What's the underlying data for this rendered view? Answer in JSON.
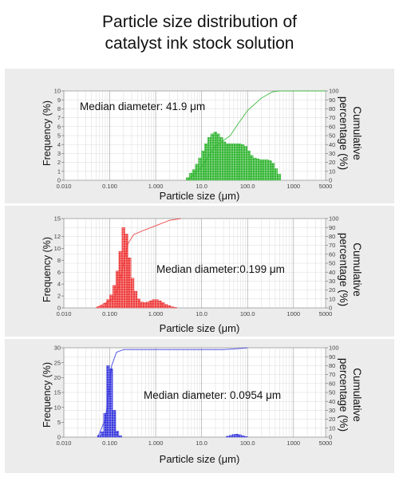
{
  "title_line1": "Particle size distribution of",
  "title_line2": "catalyst ink stock solution",
  "chart_data": [
    {
      "type": "bar",
      "color": "#33b533",
      "xscale": "log",
      "xlim": [
        0.01,
        5000
      ],
      "ylim": [
        0,
        10
      ],
      "xlabel": "Particle size (μm)",
      "ylabel": "Frequency (%)",
      "ylabel2": [
        "Cumulative",
        "percentage (%)"
      ],
      "annotation": "Median diameter: 41.9 μm",
      "xticks": [
        "0.010",
        "0.100",
        "1.000",
        "10.0",
        "100.0",
        "1000",
        "5000"
      ],
      "yticks": [
        "0",
        "1",
        "2",
        "3",
        "4",
        "5",
        "6",
        "7",
        "8",
        "9",
        "10"
      ],
      "y2ticks": [
        "0",
        "10",
        "20",
        "30",
        "40",
        "50",
        "60",
        "70",
        "80",
        "90",
        "100"
      ],
      "bins": [
        [
          5,
          0.3
        ],
        [
          5.8,
          0.8
        ],
        [
          6.8,
          1.2
        ],
        [
          7.9,
          1.8
        ],
        [
          9.2,
          2.5
        ],
        [
          10.7,
          3.3
        ],
        [
          12.5,
          4.1
        ],
        [
          14.6,
          4.8
        ],
        [
          17,
          5.2
        ],
        [
          19.8,
          5.4
        ],
        [
          23,
          5.2
        ],
        [
          26.8,
          4.8
        ],
        [
          31.2,
          4.3
        ],
        [
          36.4,
          4.1
        ],
        [
          42.4,
          4.1
        ],
        [
          49.4,
          4.1
        ],
        [
          57.5,
          4.1
        ],
        [
          67,
          4.1
        ],
        [
          78,
          4.0
        ],
        [
          90.9,
          3.8
        ],
        [
          106,
          3.3
        ],
        [
          123,
          2.8
        ],
        [
          144,
          2.5
        ],
        [
          167,
          2.4
        ],
        [
          195,
          2.3
        ],
        [
          227,
          2.3
        ],
        [
          265,
          2.3
        ],
        [
          308,
          2.2
        ],
        [
          359,
          1.9
        ],
        [
          418,
          1.3
        ],
        [
          487,
          0.7
        ]
      ],
      "cumulative": [
        [
          5,
          0
        ],
        [
          10,
          15
        ],
        [
          20,
          38
        ],
        [
          41.9,
          50
        ],
        [
          60,
          62
        ],
        [
          100,
          78
        ],
        [
          200,
          92
        ],
        [
          350,
          99
        ],
        [
          500,
          100
        ],
        [
          5000,
          100
        ]
      ]
    },
    {
      "type": "bar",
      "color": "#ee3b3b",
      "xscale": "log",
      "xlim": [
        0.01,
        5000
      ],
      "ylim": [
        0,
        15
      ],
      "xlabel": "Particle size (μm)",
      "ylabel": "Frequency (%)",
      "ylabel2": [
        "Cumulative",
        "percentage (%)"
      ],
      "annotation": "Median diameter:0.199 μm",
      "xticks": [
        "0.010",
        "0.100",
        "1.000",
        "10.0",
        "100.0",
        "1000",
        "5000"
      ],
      "yticks": [
        "0",
        "2",
        "4",
        "6",
        "8",
        "10",
        "12",
        "15"
      ],
      "yticks_at": [
        0,
        2,
        4,
        6,
        8,
        10,
        12,
        15
      ],
      "y2ticks": [
        "0",
        "10",
        "20",
        "30",
        "40",
        "50",
        "60",
        "70",
        "80",
        "90",
        "100"
      ],
      "bins": [
        [
          0.058,
          0.2
        ],
        [
          0.068,
          0.4
        ],
        [
          0.079,
          0.8
        ],
        [
          0.092,
          1.4
        ],
        [
          0.107,
          2.2
        ],
        [
          0.125,
          3.8
        ],
        [
          0.146,
          6.2
        ],
        [
          0.17,
          9.5
        ],
        [
          0.198,
          13.5
        ],
        [
          0.231,
          12.4
        ],
        [
          0.269,
          8.4
        ],
        [
          0.313,
          5.0
        ],
        [
          0.365,
          2.8
        ],
        [
          0.425,
          1.5
        ],
        [
          0.495,
          1.0
        ],
        [
          0.577,
          0.9
        ],
        [
          0.672,
          1.0
        ],
        [
          0.783,
          1.2
        ],
        [
          0.912,
          1.4
        ],
        [
          1.06,
          1.4
        ],
        [
          1.24,
          1.2
        ],
        [
          1.44,
          0.9
        ],
        [
          1.68,
          0.6
        ],
        [
          1.96,
          0.4
        ],
        [
          2.28,
          0.2
        ],
        [
          2.66,
          0.1
        ]
      ],
      "cumulative": [
        [
          0.05,
          0
        ],
        [
          0.12,
          10
        ],
        [
          0.16,
          25
        ],
        [
          0.199,
          50
        ],
        [
          0.25,
          72
        ],
        [
          0.33,
          82
        ],
        [
          0.5,
          86
        ],
        [
          1,
          92
        ],
        [
          2,
          98
        ],
        [
          3.5,
          100
        ]
      ]
    },
    {
      "type": "bar",
      "color": "#3838dd",
      "xscale": "log",
      "xlim": [
        0.01,
        5000
      ],
      "ylim": [
        0,
        30
      ],
      "xlabel": "Particle size (μm)",
      "ylabel": "Frequency (%)",
      "ylabel2": [
        "Cumulative",
        "percentage (%)"
      ],
      "annotation": "Median diameter: 0.0954 μm",
      "xticks": [
        "0.010",
        "0.100",
        "1.000",
        "10.0",
        "100.0",
        "1000",
        "5000"
      ],
      "yticks": [
        "0",
        "5",
        "10",
        "15",
        "20",
        "25",
        "30"
      ],
      "y2ticks": [
        "0",
        "10",
        "20",
        "30",
        "40",
        "50",
        "60",
        "70",
        "80",
        "90",
        "100"
      ],
      "bins": [
        [
          0.058,
          0.6
        ],
        [
          0.068,
          1.8
        ],
        [
          0.079,
          8.0
        ],
        [
          0.092,
          24.0
        ],
        [
          0.107,
          23.0
        ],
        [
          0.125,
          9.0
        ],
        [
          0.146,
          2.0
        ],
        [
          0.17,
          0.5
        ],
        [
          37,
          0.3
        ],
        [
          43,
          0.6
        ],
        [
          50,
          0.9
        ],
        [
          58,
          1.0
        ],
        [
          68,
          0.8
        ],
        [
          79,
          0.5
        ],
        [
          92,
          0.2
        ]
      ],
      "cumulative": [
        [
          0.055,
          0
        ],
        [
          0.08,
          20
        ],
        [
          0.0954,
          50
        ],
        [
          0.11,
          80
        ],
        [
          0.14,
          95
        ],
        [
          0.2,
          98
        ],
        [
          30,
          98
        ],
        [
          60,
          99
        ],
        [
          100,
          100
        ]
      ]
    }
  ]
}
